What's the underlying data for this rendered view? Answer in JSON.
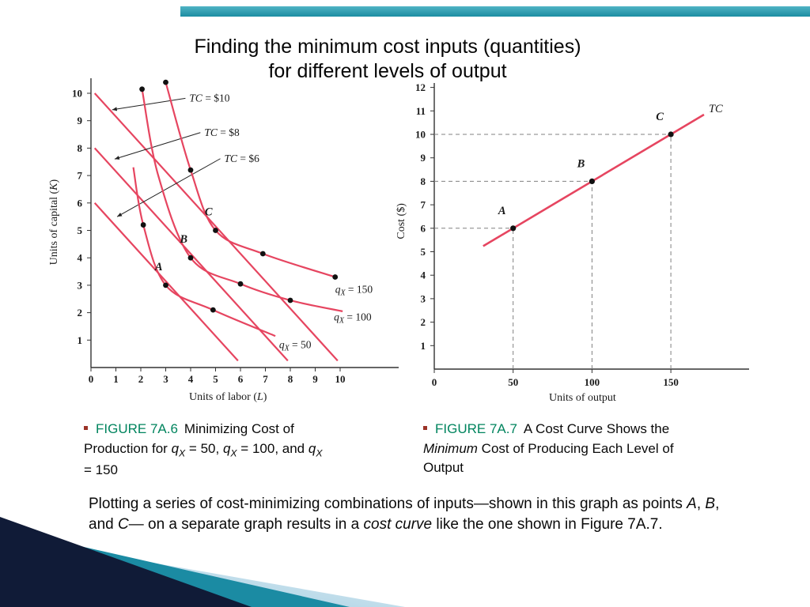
{
  "page": {
    "title_line1": "Finding the minimum cost inputs (quantities)",
    "title_line2": "for different levels of output"
  },
  "colors": {
    "top_bar": "#1c8da2",
    "top_bar_light": "#4fb3c4",
    "curve": "#e64560",
    "figure_green": "#00845e",
    "bullet": "#9b3328",
    "deco_navy": "#101b37",
    "deco_teal": "#1b8ba3",
    "deco_light_start": "#8fc2da",
    "deco_light_end": "#f2f9fc"
  },
  "captions": {
    "left": {
      "label": "FIGURE 7A.6",
      "segments": [
        {
          "t": "Minimizing Cost of Production for "
        },
        {
          "t": "q",
          "i": true
        },
        {
          "t": "X",
          "i": true,
          "sub": true
        },
        {
          "t": " = 50, "
        },
        {
          "t": "q",
          "i": true
        },
        {
          "t": "X",
          "i": true,
          "sub": true
        },
        {
          "t": " = 100, and "
        },
        {
          "t": "q",
          "i": true
        },
        {
          "t": "X",
          "i": true,
          "sub": true
        },
        {
          "t": " = 150"
        }
      ]
    },
    "right": {
      "label": "FIGURE 7A.7",
      "segments": [
        {
          "t": "A Cost Curve Shows the "
        },
        {
          "t": "Minimum",
          "i": true
        },
        {
          "t": " Cost of Producing Each Level of Output"
        }
      ]
    }
  },
  "body_text": [
    {
      "t": "Plotting a series of cost-minimizing combinations of inputs—shown in this graph as points "
    },
    {
      "t": "A",
      "i": true
    },
    {
      "t": ", "
    },
    {
      "t": "B",
      "i": true
    },
    {
      "t": ", and "
    },
    {
      "t": "C",
      "i": true
    },
    {
      "t": "— on a separate graph results in a "
    },
    {
      "t": "cost curve",
      "i": true
    },
    {
      "t": " like the one shown in Figure 7A.7."
    }
  ],
  "chart_data": [
    {
      "type": "line",
      "name": "isoquants-and-isocost-lines",
      "xlabel": [
        {
          "t": "Units of labor ("
        },
        {
          "t": "L",
          "i": true
        },
        {
          "t": ")"
        }
      ],
      "ylabel": [
        {
          "t": "Units of capital ("
        },
        {
          "t": "K",
          "i": true
        },
        {
          "t": ")"
        }
      ],
      "xlim": [
        0,
        12.3
      ],
      "ylim": [
        0,
        11.3
      ],
      "xticks": [
        0,
        1,
        2,
        3,
        4,
        5,
        6,
        7,
        8,
        9,
        10
      ],
      "yticks": [
        1,
        2,
        3,
        4,
        5,
        6,
        7,
        8,
        9,
        10
      ],
      "isocost_lines": [
        {
          "label": [
            {
              "t": "TC",
              "i": true
            },
            {
              "t": " = $10"
            }
          ],
          "from": [
            0.15,
            10.0
          ],
          "to": [
            9.9,
            0.25
          ],
          "label_pos": [
            3.95,
            9.7
          ],
          "arrow_tip": [
            0.85,
            9.4
          ]
        },
        {
          "label": [
            {
              "t": "TC",
              "i": true
            },
            {
              "t": " = $8"
            }
          ],
          "from": [
            0.15,
            8.0
          ],
          "to": [
            7.9,
            0.25
          ],
          "label_pos": [
            4.55,
            8.45
          ],
          "arrow_tip": [
            0.95,
            7.6
          ]
        },
        {
          "label": [
            {
              "t": "TC",
              "i": true
            },
            {
              "t": " = $6"
            }
          ],
          "from": [
            0.15,
            6.0
          ],
          "to": [
            5.9,
            0.25
          ],
          "label_pos": [
            5.35,
            7.5
          ],
          "arrow_tip": [
            1.05,
            5.5
          ]
        }
      ],
      "isoquants": [
        {
          "label": [
            {
              "t": "q",
              "i": true
            },
            {
              "t": "X",
              "i": true,
              "sub": true
            },
            {
              "t": " = 50"
            }
          ],
          "label_pos": [
            7.55,
            0.7
          ],
          "points": [
            [
              1.7,
              7.3
            ],
            [
              2.1,
              5.2
            ],
            [
              3,
              3
            ],
            [
              4.9,
              2.1
            ],
            [
              7.4,
              1.15
            ]
          ],
          "dots": [
            [
              2.1,
              5.2
            ],
            [
              3,
              3
            ],
            [
              4.9,
              2.1
            ]
          ]
        },
        {
          "label": [
            {
              "t": "q",
              "i": true
            },
            {
              "t": "X",
              "i": true,
              "sub": true
            },
            {
              "t": " = 100"
            }
          ],
          "label_pos": [
            9.75,
            1.72
          ],
          "points": [
            [
              2.05,
              10.15
            ],
            [
              2.7,
              7.0
            ],
            [
              4,
              4
            ],
            [
              6,
              3.05
            ],
            [
              8,
              2.45
            ],
            [
              10.1,
              2.05
            ]
          ],
          "dots": [
            [
              2.05,
              10.15
            ],
            [
              4,
              4
            ],
            [
              6,
              3.05
            ],
            [
              8,
              2.45
            ]
          ]
        },
        {
          "label": [
            {
              "t": "q",
              "i": true
            },
            {
              "t": "X",
              "i": true,
              "sub": true
            },
            {
              "t": " = 150"
            }
          ],
          "label_pos": [
            9.8,
            2.72
          ],
          "points": [
            [
              3.0,
              10.4
            ],
            [
              4,
              7.2
            ],
            [
              5,
              5
            ],
            [
              6.9,
              4.15
            ],
            [
              9.8,
              3.3
            ]
          ],
          "dots": [
            [
              3.0,
              10.4
            ],
            [
              4,
              7.2
            ],
            [
              5,
              5
            ],
            [
              6.9,
              4.15
            ],
            [
              9.8,
              3.3
            ]
          ]
        }
      ],
      "tangency_points": [
        {
          "label": "A",
          "at": [
            3,
            3
          ],
          "label_pos": [
            2.72,
            3.55
          ]
        },
        {
          "label": "B",
          "at": [
            4,
            4
          ],
          "label_pos": [
            3.72,
            4.55
          ]
        },
        {
          "label": "C",
          "at": [
            5,
            5
          ],
          "label_pos": [
            4.72,
            5.55
          ]
        }
      ]
    },
    {
      "type": "line",
      "name": "total-cost-curve",
      "xlabel": [
        {
          "t": "Units of output"
        }
      ],
      "ylabel": [
        {
          "t": "Cost ($)"
        }
      ],
      "xlim": [
        0,
        198
      ],
      "ylim": [
        0,
        12.9
      ],
      "xticks": [
        0,
        50,
        100,
        150
      ],
      "yticks": [
        1,
        2,
        3,
        4,
        5,
        6,
        7,
        8,
        9,
        10,
        11,
        12
      ],
      "tc_line": {
        "label": [
          {
            "t": "TC",
            "i": true
          }
        ],
        "from": [
          31,
          5.24
        ],
        "to": [
          171,
          10.84
        ],
        "label_pos": [
          174,
          10.95
        ]
      },
      "points": [
        {
          "label": "A",
          "x": 50,
          "y": 6,
          "label_pos": [
            43,
            6.6
          ]
        },
        {
          "label": "B",
          "x": 100,
          "y": 8,
          "label_pos": [
            93,
            8.6
          ]
        },
        {
          "label": "C",
          "x": 150,
          "y": 10,
          "label_pos": [
            143,
            10.6
          ]
        }
      ]
    }
  ]
}
